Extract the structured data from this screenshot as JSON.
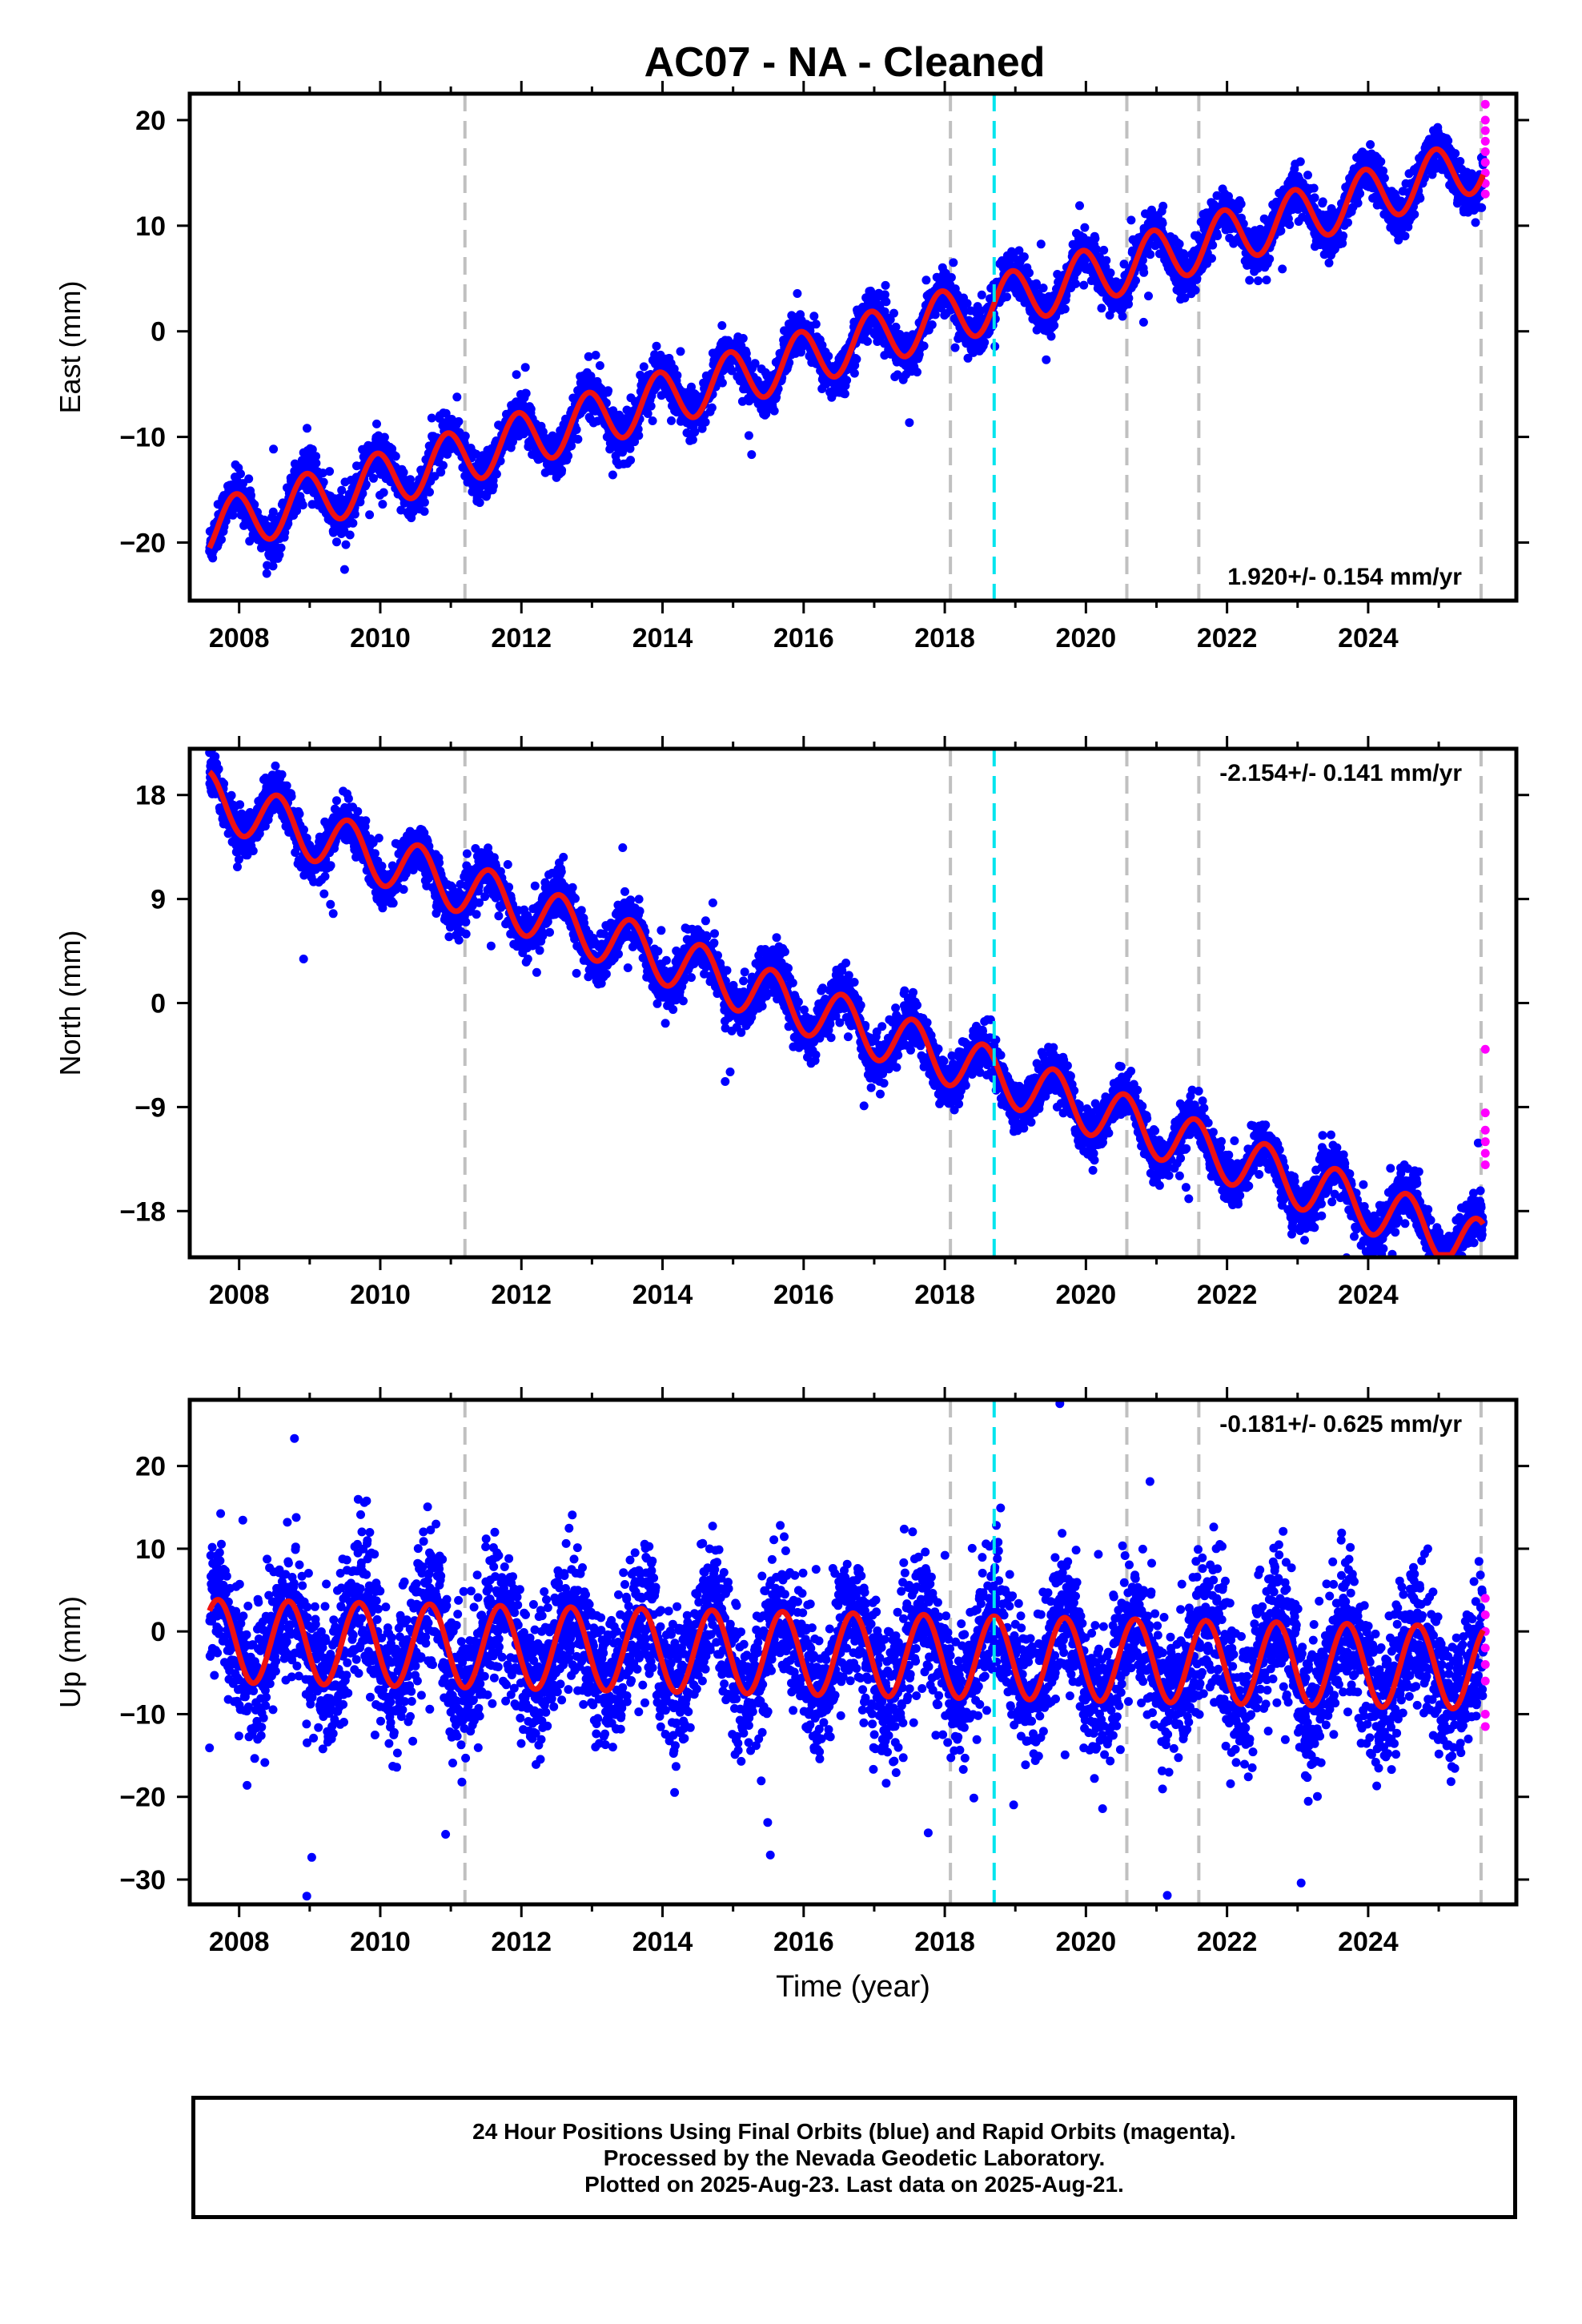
{
  "title": "AC07  - NA - Cleaned",
  "footer": {
    "line1": "24 Hour Positions Using Final Orbits (blue) and Rapid Orbits (magenta).",
    "line2": "Processed by the Nevada Geodetic Laboratory.",
    "line3": "Plotted on 2025-Aug-23. Last data on 2025-Aug-21."
  },
  "colors": {
    "final_orbits": "#0000ff",
    "rapid_orbits": "#ff00ff",
    "model_fit": "#ee1111",
    "event_line": "#c0c0c0",
    "highlight_event_line": "#00e5ee"
  },
  "chart_data": [
    {
      "type": "scatter",
      "component": "East",
      "ylabel": "East (mm)",
      "xlabel": "",
      "xlim": [
        2007.3,
        2026.1
      ],
      "ylim": [
        -25.5,
        22.5
      ],
      "yticks": [
        -20,
        -10,
        0,
        10,
        20
      ],
      "xticks": [
        2008,
        2010,
        2012,
        2014,
        2016,
        2018,
        2020,
        2022,
        2024
      ],
      "grid": false,
      "rate_label": "1.920+/- 0.154 mm/yr",
      "rate_label_position": "bottom-right",
      "model": {
        "start_value": -20.5,
        "start_year": 2007.58,
        "trend": 1.92,
        "annual_amplitude": 2.6,
        "peak_phase": 0.95
      },
      "event_lines": [
        2011.2,
        2018.08,
        2020.58,
        2021.6,
        2025.6
      ],
      "highlight_event_lines": [
        2018.7
      ],
      "data_range": {
        "start": 2007.58,
        "end": 2025.63
      },
      "rapid_orbit_values": [
        13.0,
        14.0,
        15.0,
        16.0,
        17.0,
        18.0,
        19.0,
        20.0,
        21.5
      ]
    },
    {
      "type": "scatter",
      "component": "North",
      "ylabel": "North (mm)",
      "xlabel": "",
      "xlim": [
        2007.3,
        2026.1
      ],
      "ylim": [
        -22,
        22
      ],
      "yticks": [
        -18,
        -9,
        0,
        9,
        18
      ],
      "xticks": [
        2008,
        2010,
        2012,
        2014,
        2016,
        2018,
        2020,
        2022,
        2024
      ],
      "grid": false,
      "rate_label": "-2.154+/- 0.141 mm/yr",
      "rate_label_position": "top-right",
      "model": {
        "start_value": 20.0,
        "start_year": 2007.58,
        "trend": -2.154,
        "annual_amplitude": 2.3,
        "peak_phase": 0.55
      },
      "event_lines": [
        2011.2,
        2018.08,
        2020.58,
        2021.6,
        2025.6
      ],
      "highlight_event_lines": [
        2018.7
      ],
      "data_range": {
        "start": 2007.58,
        "end": 2025.63
      },
      "rapid_orbit_values": [
        -4.0,
        -9.5,
        -11.0,
        -12.0,
        -13.0,
        -14.0
      ]
    },
    {
      "type": "scatter",
      "component": "Up",
      "ylabel": "Up (mm)",
      "xlabel": "Time (year)",
      "xlim": [
        2007.3,
        2026.1
      ],
      "ylim": [
        -33,
        28
      ],
      "yticks": [
        -30,
        -20,
        -10,
        0,
        10,
        20
      ],
      "xticks": [
        2008,
        2010,
        2012,
        2014,
        2016,
        2018,
        2020,
        2022,
        2024
      ],
      "grid": false,
      "rate_label": "-0.181+/- 0.625 mm/yr",
      "rate_label_position": "top-right",
      "model": {
        "start_value": 2.5,
        "start_year": 2007.58,
        "trend": -0.181,
        "annual_amplitude": 5.0,
        "peak_phase": 0.7
      },
      "event_lines": [
        2011.2,
        2018.08,
        2020.58,
        2021.6,
        2025.6
      ],
      "highlight_event_lines": [
        2018.7
      ],
      "data_range": {
        "start": 2007.58,
        "end": 2025.63
      },
      "rapid_orbit_values": [
        4.0,
        2.0,
        0.0,
        -2.0,
        -4.0,
        -6.0,
        -10.0,
        -11.5
      ]
    }
  ]
}
